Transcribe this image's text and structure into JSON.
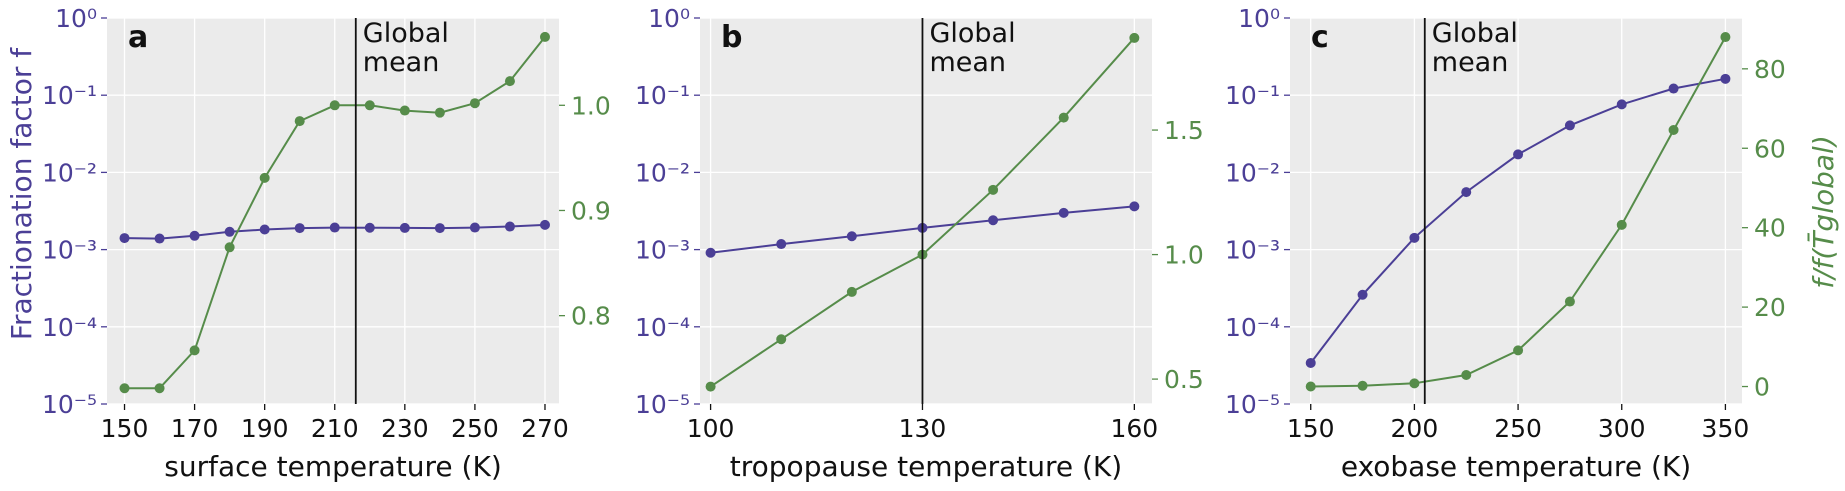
{
  "colors": {
    "left_series": "#4b3f96",
    "right_series": "#568c4a",
    "axes_bg": "#ebebeb",
    "grid": "#ffffff",
    "text": "#111111",
    "vline": "#111111"
  },
  "shared": {
    "left_ylabel": "Fractionation factor f",
    "right_ylabel": "f/f(T̄global)",
    "left_ytick_labels": [
      "10⁰",
      "10⁻¹",
      "10⁻²",
      "10⁻³",
      "10⁻⁴",
      "10⁻⁵"
    ]
  },
  "chart_data": [
    {
      "type": "line",
      "panel_label": "a",
      "xlabel": "surface temperature (K)",
      "xlim": [
        145,
        274
      ],
      "xticks": [
        150,
        170,
        190,
        210,
        230,
        250,
        270
      ],
      "left_yscale": "log",
      "left_ylim": [
        1e-05,
        1
      ],
      "right_ylim": [
        0.716,
        1.083
      ],
      "right_yticks": [
        0.8,
        0.9,
        1.0
      ],
      "right_ytick_labels": [
        "0.8",
        "0.9",
        "1.0"
      ],
      "annotation": {
        "text_line1": "Global",
        "text_line2": "mean",
        "x": 216
      },
      "x": [
        150,
        160,
        170,
        180,
        190,
        200,
        210,
        220,
        230,
        240,
        250,
        260,
        270
      ],
      "series": [
        {
          "axis": "left",
          "values": [
            0.00141,
            0.00139,
            0.00151,
            0.0017,
            0.00182,
            0.0019,
            0.00193,
            0.00192,
            0.00191,
            0.0019,
            0.00193,
            0.00199,
            0.00209
          ]
        },
        {
          "axis": "right",
          "values": [
            0.731,
            0.731,
            0.767,
            0.865,
            0.931,
            0.985,
            1.0,
            1.0,
            0.995,
            0.993,
            1.002,
            1.023,
            1.065
          ]
        }
      ]
    },
    {
      "type": "line",
      "panel_label": "b",
      "xlabel": "tropopause temperature (K)",
      "xlim": [
        98.5,
        162.5
      ],
      "xticks": [
        100,
        130,
        160
      ],
      "left_yscale": "log",
      "left_ylim": [
        1e-05,
        1
      ],
      "right_ylim": [
        0.4,
        1.95
      ],
      "right_yticks": [
        0.5,
        1.0,
        1.5
      ],
      "right_ytick_labels": [
        "0.5",
        "1.0",
        "1.5"
      ],
      "annotation": {
        "text_line1": "Global",
        "text_line2": "mean",
        "x": 130
      },
      "x": [
        100,
        110,
        120,
        130,
        140,
        150,
        160
      ],
      "series": [
        {
          "axis": "left",
          "values": [
            0.00091,
            0.00118,
            0.00149,
            0.00191,
            0.0024,
            0.00299,
            0.00363
          ]
        },
        {
          "axis": "right",
          "values": [
            0.47,
            0.66,
            0.85,
            1.0,
            1.26,
            1.55,
            1.87
          ]
        }
      ]
    },
    {
      "type": "line",
      "panel_label": "c",
      "xlabel": "exobase temperature (K)",
      "xlim": [
        140,
        358
      ],
      "xticks": [
        150,
        200,
        250,
        300,
        350
      ],
      "left_yscale": "log",
      "left_ylim": [
        1e-05,
        1
      ],
      "right_ylim": [
        -4.4,
        92.8
      ],
      "right_yticks": [
        0,
        20,
        40,
        60,
        80
      ],
      "right_ytick_labels": [
        "0",
        "20",
        "40",
        "60",
        "80"
      ],
      "annotation": {
        "text_line1": "Global",
        "text_line2": "mean",
        "x": 205
      },
      "x": [
        150,
        175,
        200,
        225,
        250,
        275,
        300,
        325,
        350
      ],
      "series": [
        {
          "axis": "left",
          "values": [
            3.4e-05,
            0.00026,
            0.00142,
            0.00555,
            0.0171,
            0.0406,
            0.0761,
            0.122,
            0.163
          ]
        },
        {
          "axis": "right",
          "values": [
            0.0,
            0.2,
            0.8,
            2.9,
            9.1,
            21.4,
            40.7,
            64.6,
            88.0
          ]
        }
      ]
    }
  ]
}
